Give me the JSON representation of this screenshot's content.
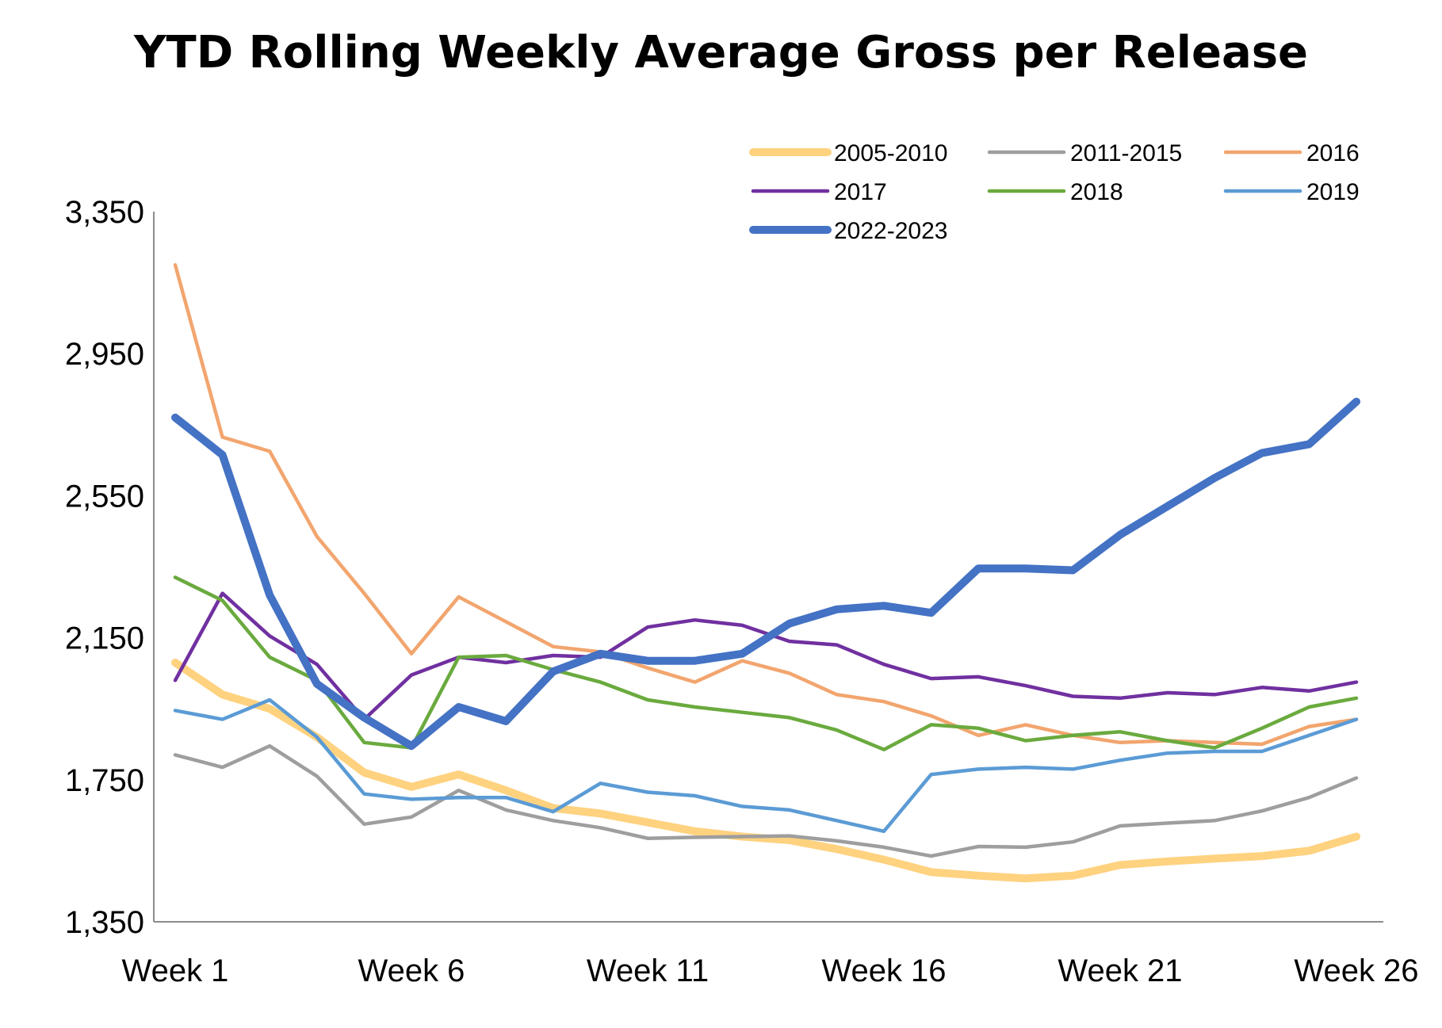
{
  "chart_data": {
    "type": "line",
    "title": "YTD Rolling Weekly Average Gross per Release",
    "xlabel": "",
    "ylabel": "",
    "x": [
      1,
      2,
      3,
      4,
      5,
      6,
      7,
      8,
      9,
      10,
      11,
      12,
      13,
      14,
      15,
      16,
      17,
      18,
      19,
      20,
      21,
      22,
      23,
      24,
      25,
      26
    ],
    "x_tick_labels": [
      "Week 1",
      "Week 6",
      "Week 11",
      "Week 16",
      "Week 21",
      "Week 26"
    ],
    "x_tick_positions": [
      1,
      6,
      11,
      16,
      21,
      26
    ],
    "ylim": [
      1350,
      3350
    ],
    "y_ticks": [
      1350,
      1750,
      2150,
      2550,
      2950,
      3350
    ],
    "y_tick_labels": [
      "1,350",
      "1,750",
      "2,150",
      "2,550",
      "2,950",
      "3,350"
    ],
    "grid": false,
    "legend_position": "top-right",
    "series": [
      {
        "name": "2005-2010",
        "color": "#FFD280",
        "width": "heavy",
        "values": [
          2080,
          1990,
          1950,
          1870,
          1770,
          1730,
          1765,
          1720,
          1670,
          1655,
          1630,
          1605,
          1590,
          1580,
          1555,
          1525,
          1490,
          1480,
          1472,
          1480,
          1510,
          1520,
          1528,
          1535,
          1550,
          1590
        ]
      },
      {
        "name": "2011-2015",
        "color": "#9E9E9E",
        "width": "normal",
        "values": [
          1820,
          1785,
          1845,
          1760,
          1625,
          1645,
          1720,
          1665,
          1635,
          1615,
          1585,
          1588,
          1590,
          1592,
          1578,
          1560,
          1535,
          1562,
          1560,
          1575,
          1620,
          1628,
          1635,
          1662,
          1700,
          1755
        ]
      },
      {
        "name": "2016",
        "color": "#F2A56E",
        "width": "normal",
        "values": [
          3200,
          2715,
          2675,
          2435,
          2275,
          2105,
          2265,
          2195,
          2125,
          2110,
          2065,
          2025,
          2085,
          2050,
          1990,
          1970,
          1930,
          1875,
          1905,
          1875,
          1855,
          1860,
          1855,
          1850,
          1900,
          1920
        ]
      },
      {
        "name": "2017",
        "color": "#7030A0",
        "width": "normal",
        "values": [
          2030,
          2275,
          2155,
          2075,
          1920,
          2045,
          2095,
          2080,
          2100,
          2095,
          2180,
          2200,
          2185,
          2140,
          2130,
          2075,
          2035,
          2040,
          2015,
          1985,
          1980,
          1995,
          1990,
          2010,
          2000,
          2025
        ]
      },
      {
        "name": "2018",
        "color": "#6AAA3E",
        "width": "normal",
        "values": [
          2320,
          2255,
          2095,
          2030,
          1855,
          1840,
          2095,
          2100,
          2060,
          2025,
          1975,
          1955,
          1940,
          1925,
          1890,
          1835,
          1905,
          1895,
          1860,
          1875,
          1885,
          1860,
          1840,
          1895,
          1955,
          1980
        ]
      },
      {
        "name": "2019",
        "color": "#5B9BD5",
        "width": "normal",
        "values": [
          1945,
          1920,
          1975,
          1870,
          1710,
          1695,
          1700,
          1700,
          1660,
          1740,
          1715,
          1705,
          1675,
          1665,
          1635,
          1605,
          1765,
          1780,
          1785,
          1780,
          1805,
          1825,
          1830,
          1830,
          1875,
          1920
        ]
      },
      {
        "name": "2022-2023",
        "color": "#4472C4",
        "width": "thick",
        "values": [
          2770,
          2665,
          2270,
          2020,
          1925,
          1845,
          1955,
          1915,
          2055,
          2105,
          2085,
          2085,
          2105,
          2190,
          2230,
          2240,
          2220,
          2345,
          2345,
          2340,
          2440,
          2520,
          2600,
          2670,
          2695,
          2815
        ]
      }
    ]
  }
}
